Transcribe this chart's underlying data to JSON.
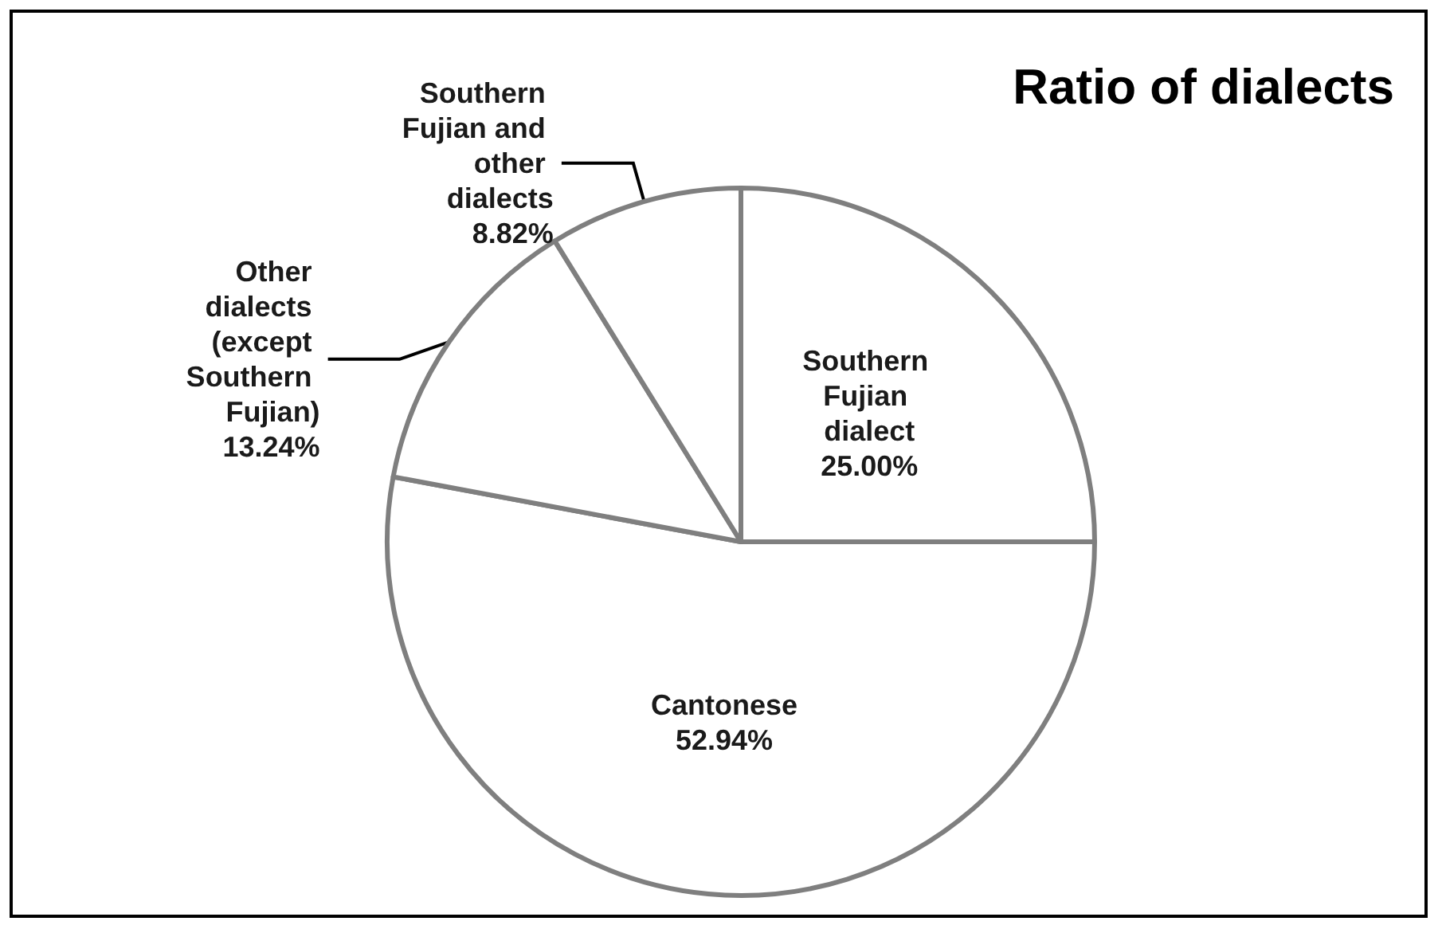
{
  "chart_data": {
    "type": "pie",
    "title": "Ratio of dialects",
    "categories": [
      "Southern Fujian dialect",
      "Cantonese",
      "Other dialects (except Southern Fujian)",
      "Southern Fujian and other dialects"
    ],
    "values": [
      25.0,
      52.94,
      13.24,
      8.82
    ],
    "value_labels": [
      "25.00%",
      "52.94%",
      "13.24%",
      "8.82%"
    ],
    "colors": [
      "#ffffff",
      "#ffffff",
      "#ffffff",
      "#ffffff"
    ],
    "legend": false
  }
}
